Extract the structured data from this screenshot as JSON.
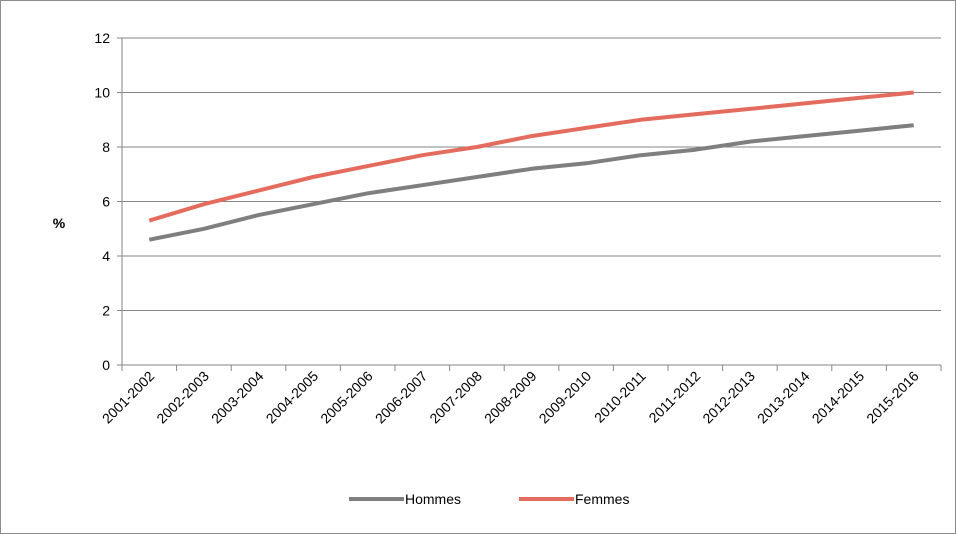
{
  "chart_data": {
    "type": "line",
    "title": "",
    "xlabel": "",
    "ylabel": "%",
    "ylim": [
      0,
      12
    ],
    "yticks": [
      0,
      2,
      4,
      6,
      8,
      10,
      12
    ],
    "grid": true,
    "legend_position": "bottom",
    "categories": [
      "2001-2002",
      "2002-2003",
      "2003-2004",
      "2004-2005",
      "2005-2006",
      "2006-2007",
      "2007-2008",
      "2008-2009",
      "2009-2010",
      "2010-2011",
      "2011-2012",
      "2012-2013",
      "2013-2014",
      "2014-2015",
      "2015-2016"
    ],
    "series": [
      {
        "name": "Hommes",
        "color": "#7f7f7f",
        "values": [
          4.6,
          5.0,
          5.5,
          5.9,
          6.3,
          6.6,
          6.9,
          7.2,
          7.4,
          7.7,
          7.9,
          8.2,
          8.4,
          8.6,
          8.8
        ]
      },
      {
        "name": "Femmes",
        "color": "#e46c5e",
        "values": [
          5.3,
          5.9,
          6.4,
          6.9,
          7.3,
          7.7,
          8.0,
          8.4,
          8.7,
          9.0,
          9.2,
          9.4,
          9.6,
          9.8,
          10.0
        ]
      }
    ]
  }
}
